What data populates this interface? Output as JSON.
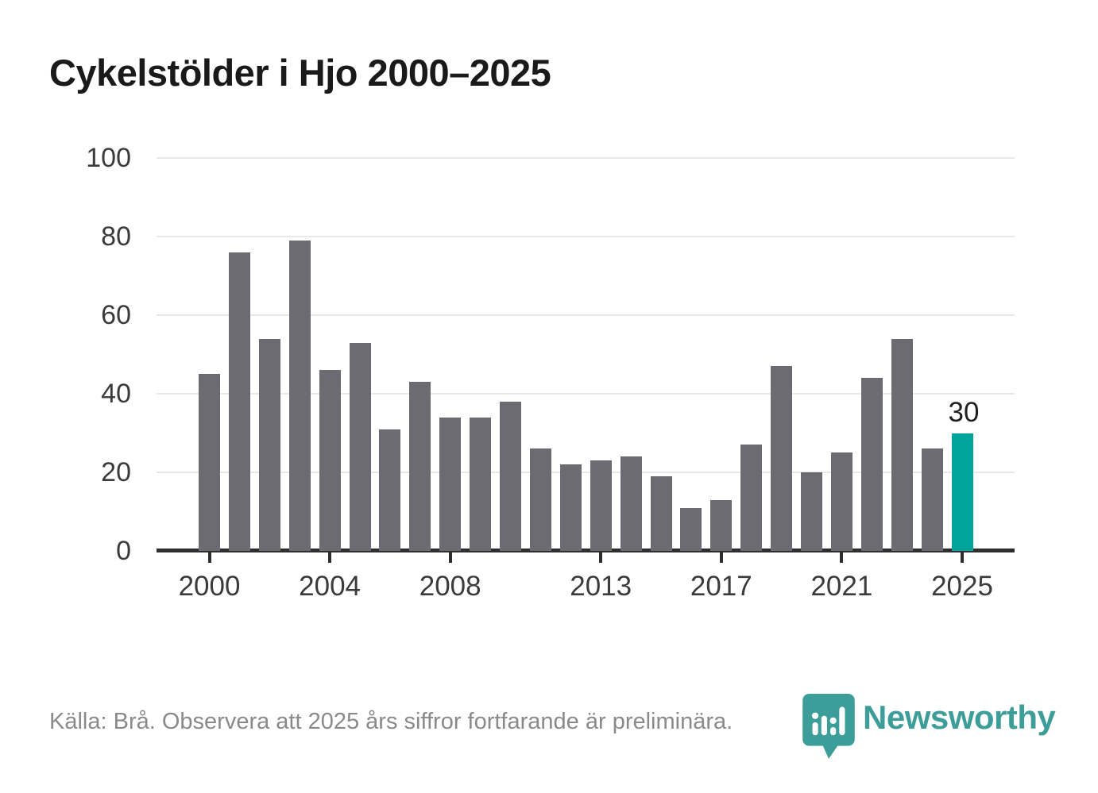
{
  "title": "Cykelstölder i Hjo 2000–2025",
  "footer": {
    "source_note": "Källa: Brå. Observera att 2025 års siffror fortfarande är preliminära."
  },
  "branding": {
    "logo_text": "Newsworthy",
    "logo_icon": "newsworthy-pin-bar-chart"
  },
  "colors": {
    "bar": "#6b6b71",
    "highlight": "#00a49a",
    "axis": "#2e2e2e",
    "grid": "#e8e8e8",
    "tick_label": "#3b3b3b",
    "title_text": "#1a1a1a",
    "value_label": "#1f1f1f",
    "footer_text": "#8a8a8a",
    "logo": "#3d9e99"
  },
  "chart_data": {
    "type": "bar",
    "title": "Cykelstölder i Hjo 2000–2025",
    "categories": [
      "2000",
      "2001",
      "2002",
      "2003",
      "2004",
      "2005",
      "2006",
      "2007",
      "2008",
      "2009",
      "2010",
      "2011",
      "2012",
      "2013",
      "2014",
      "2015",
      "2016",
      "2017",
      "2018",
      "2019",
      "2020",
      "2021",
      "2022",
      "2023",
      "2024",
      "2025"
    ],
    "values": [
      45,
      76,
      54,
      79,
      46,
      53,
      31,
      43,
      34,
      34,
      38,
      26,
      22,
      23,
      24,
      19,
      11,
      13,
      27,
      47,
      20,
      25,
      44,
      54,
      26,
      30
    ],
    "highlight_category": "2025",
    "value_label": {
      "text": "30",
      "category": "2025"
    },
    "y_ticks": [
      "0",
      "20",
      "40",
      "60",
      "80",
      "100"
    ],
    "x_ticks": [
      "2000",
      "2004",
      "2008",
      "2013",
      "2017",
      "2021",
      "2025"
    ],
    "ylim": [
      0,
      100
    ],
    "grid": true,
    "legend": null
  }
}
